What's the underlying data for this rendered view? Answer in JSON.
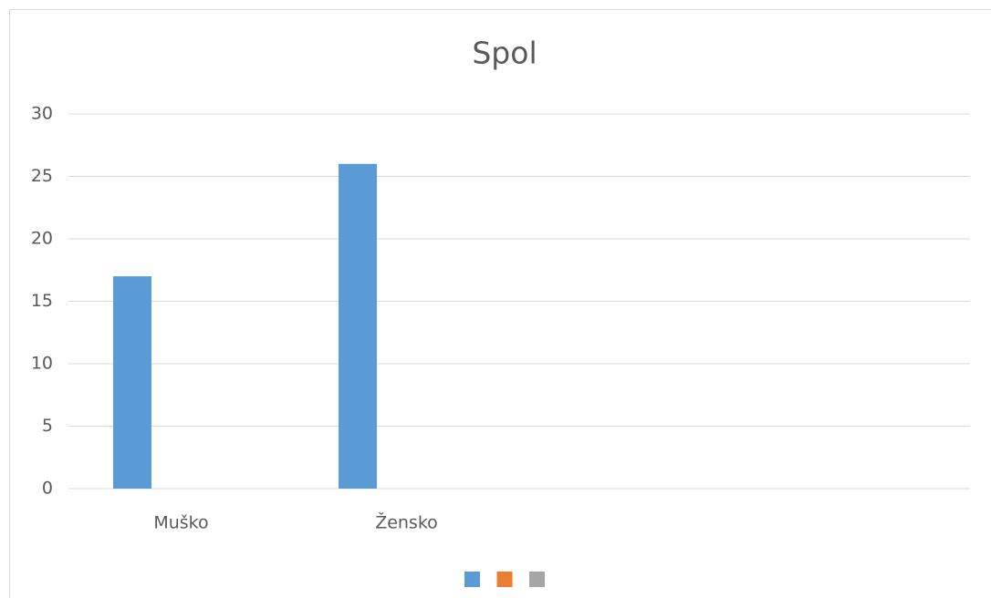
{
  "chart_data": {
    "type": "bar",
    "title": "Spol",
    "categories": [
      "Muško",
      "Žensko",
      null,
      null
    ],
    "series": [
      {
        "color": "#5b9bd5",
        "values": [
          17,
          26,
          null,
          null
        ]
      },
      {
        "color": "#ed7d31",
        "values": [
          null,
          null,
          null,
          null
        ]
      },
      {
        "color": "#a5a5a5",
        "values": [
          null,
          null,
          null,
          null
        ]
      }
    ],
    "ylim": [
      0,
      30
    ],
    "yticks": [
      0,
      5,
      10,
      15,
      20,
      25,
      30
    ],
    "grid": true,
    "legend": "bottom"
  }
}
